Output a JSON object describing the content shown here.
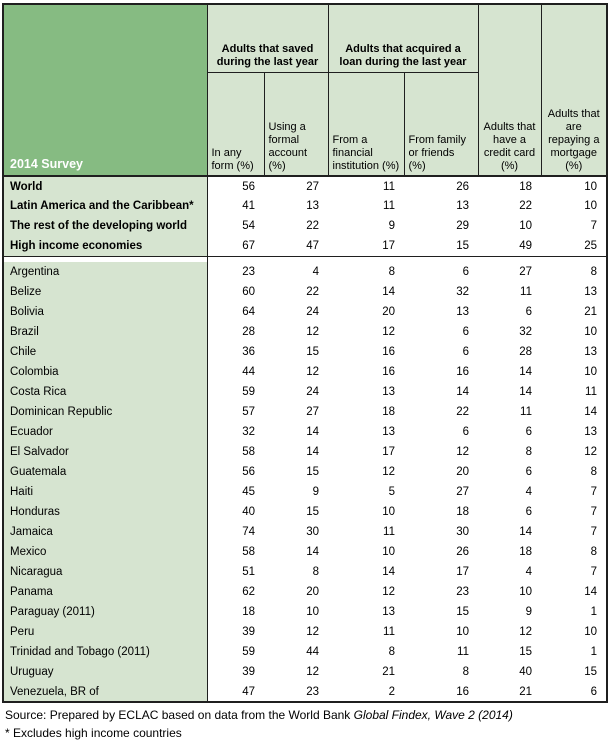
{
  "chart_data": {
    "type": "table",
    "title": "2014 Survey",
    "column_groups": [
      {
        "label": "Adults that saved during the last year",
        "columns": [
          0,
          1
        ]
      },
      {
        "label": "Adults that acquired a loan during the last year",
        "columns": [
          2,
          3
        ]
      }
    ],
    "columns": [
      "In any form (%)",
      "Using a formal account (%)",
      "From a financial institution (%)",
      "From family or friends (%)",
      "Adults that have a credit card (%)",
      "Adults that are repaying a mortgage (%)"
    ],
    "aggregate_rows": [
      {
        "label": "World",
        "values": [
          56,
          27,
          11,
          26,
          18,
          10
        ]
      },
      {
        "label": "Latin America and the Caribbean*",
        "values": [
          41,
          13,
          11,
          13,
          22,
          10
        ]
      },
      {
        "label": "The rest of the developing world",
        "values": [
          54,
          22,
          9,
          29,
          10,
          7
        ]
      },
      {
        "label": "High income economies",
        "values": [
          67,
          47,
          17,
          15,
          49,
          25
        ]
      }
    ],
    "country_rows": [
      {
        "label": "Argentina",
        "values": [
          23,
          4,
          8,
          6,
          27,
          8
        ]
      },
      {
        "label": "Belize",
        "values": [
          60,
          22,
          14,
          32,
          11,
          13
        ]
      },
      {
        "label": "Bolivia",
        "values": [
          64,
          24,
          20,
          13,
          6,
          21
        ]
      },
      {
        "label": "Brazil",
        "values": [
          28,
          12,
          12,
          6,
          32,
          10
        ]
      },
      {
        "label": "Chile",
        "values": [
          36,
          15,
          16,
          6,
          28,
          13
        ]
      },
      {
        "label": "Colombia",
        "values": [
          44,
          12,
          16,
          16,
          14,
          10
        ]
      },
      {
        "label": "Costa Rica",
        "values": [
          59,
          24,
          13,
          14,
          14,
          11
        ]
      },
      {
        "label": "Dominican Republic",
        "values": [
          57,
          27,
          18,
          22,
          11,
          14
        ]
      },
      {
        "label": "Ecuador",
        "values": [
          32,
          14,
          13,
          6,
          6,
          13
        ]
      },
      {
        "label": "El Salvador",
        "values": [
          58,
          14,
          17,
          12,
          8,
          12
        ]
      },
      {
        "label": "Guatemala",
        "values": [
          56,
          15,
          12,
          20,
          6,
          8
        ]
      },
      {
        "label": "Haiti",
        "values": [
          45,
          9,
          5,
          27,
          4,
          7
        ]
      },
      {
        "label": "Honduras",
        "values": [
          40,
          15,
          10,
          18,
          6,
          7
        ]
      },
      {
        "label": "Jamaica",
        "values": [
          74,
          30,
          11,
          30,
          14,
          7
        ]
      },
      {
        "label": "Mexico",
        "values": [
          58,
          14,
          10,
          26,
          18,
          8
        ]
      },
      {
        "label": "Nicaragua",
        "values": [
          51,
          8,
          14,
          17,
          4,
          7
        ]
      },
      {
        "label": "Panama",
        "values": [
          62,
          20,
          12,
          23,
          10,
          14
        ]
      },
      {
        "label": "Paraguay (2011)",
        "values": [
          18,
          10,
          13,
          15,
          9,
          1
        ]
      },
      {
        "label": "Peru",
        "values": [
          39,
          12,
          11,
          10,
          12,
          10
        ]
      },
      {
        "label": "Trinidad and Tobago (2011)",
        "values": [
          59,
          44,
          8,
          11,
          15,
          1
        ]
      },
      {
        "label": "Uruguay",
        "values": [
          39,
          12,
          21,
          8,
          40,
          15
        ]
      },
      {
        "label": "Venezuela, BR of",
        "values": [
          47,
          23,
          2,
          16,
          21,
          6
        ]
      }
    ]
  },
  "footer": {
    "source_prefix": "Source: Prepared by ECLAC based on data from the World Bank ",
    "source_italic": "Global Findex, Wave 2 (2014)",
    "note": "* Excludes high income countries"
  },
  "colors": {
    "header_green": "#86BB82",
    "light_green": "#D6E4D0",
    "border": "#1f1f1f",
    "title_text": "#ffffff"
  }
}
